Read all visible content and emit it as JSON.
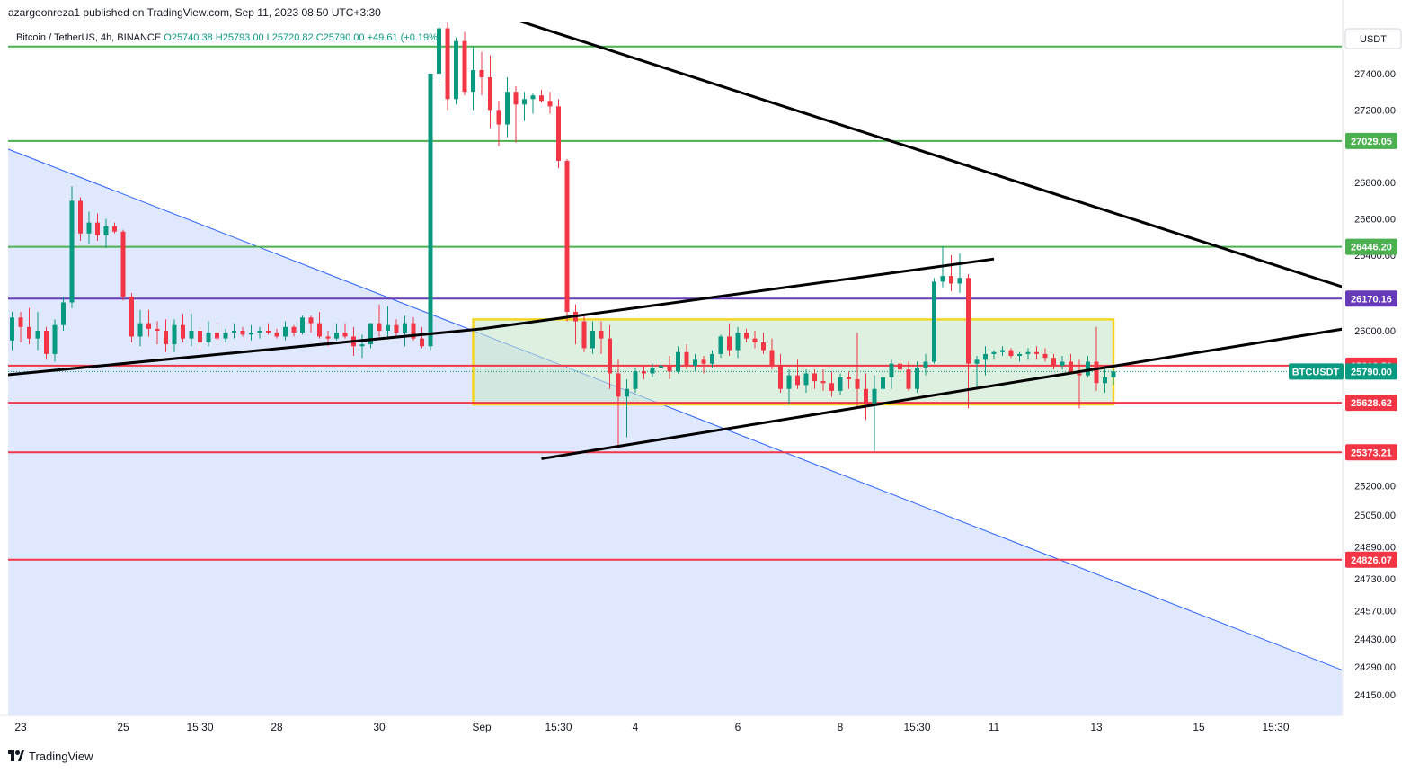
{
  "header": {
    "published_by": "azargoonreza1 published on TradingView.com, Sep 11, 2023 08:50 UTC+3:30"
  },
  "footer": {
    "brand": "TradingView"
  },
  "chart_data": {
    "type": "candlestick",
    "symbol_line": "Bitcoin / TetherUS, 4h, BINANCE",
    "ohlc": {
      "O": "25740.38",
      "H": "25793.00",
      "L": "25720.82",
      "C": "25790.00",
      "change": "+49.61 (+0.19%)"
    },
    "currency": "USDT",
    "y_axis": {
      "ticks": [
        [
          "27400.00",
          27400
        ],
        [
          "27200.00",
          27200
        ],
        [
          "26800.00",
          26800
        ],
        [
          "26600.00",
          26600
        ],
        [
          "26400.00",
          26400
        ],
        [
          "26000.00",
          26000
        ],
        [
          "25200.00",
          25200
        ],
        [
          "25050.00",
          25050
        ],
        [
          "24890.00",
          24890
        ],
        [
          "24730.00",
          24730
        ],
        [
          "24570.00",
          24570
        ],
        [
          "24430.00",
          24430
        ],
        [
          "24290.00",
          24290
        ],
        [
          "24150.00",
          24150
        ]
      ]
    },
    "x_axis": {
      "ticks": [
        [
          "23",
          "2023-08-23 00:00"
        ],
        [
          "25",
          "2023-08-25 00:00"
        ],
        [
          "15:30",
          "2023-08-26 12:00"
        ],
        [
          "28",
          "2023-08-28 00:00"
        ],
        [
          "30",
          "2023-08-30 00:00"
        ],
        [
          "Sep",
          "2023-09-01 00:00"
        ],
        [
          "15:30",
          "2023-09-02 12:00"
        ],
        [
          "4",
          "2023-09-04 00:00"
        ],
        [
          "6",
          "2023-09-06 00:00"
        ],
        [
          "8",
          "2023-09-08 00:00"
        ],
        [
          "15:30",
          "2023-09-09 12:00"
        ],
        [
          "11",
          "2023-09-11 00:00"
        ],
        [
          "13",
          "2023-09-13 00:00"
        ],
        [
          "15",
          "2023-09-15 00:00"
        ],
        [
          "15:30",
          "2023-09-16 12:00"
        ]
      ]
    },
    "horizontal_levels": [
      {
        "price": 27550,
        "color": "#4caf50"
      },
      {
        "price": 27029.05,
        "label": "27029.05",
        "color": "#4caf50"
      },
      {
        "price": 26446.2,
        "label": "26446.20",
        "color": "#4caf50"
      },
      {
        "price": 26170.16,
        "label": "26170.16",
        "color": "#673ab7"
      },
      {
        "price": 25819.58,
        "label": "25819.58",
        "color": "#f23645"
      },
      {
        "price": 25628.62,
        "label": "25628.62",
        "color": "#f23645"
      },
      {
        "price": 25373.21,
        "label": "25373.21",
        "color": "#f23645"
      },
      {
        "price": 24826.07,
        "label": "24826.07",
        "color": "#f23645"
      }
    ],
    "last_price": {
      "symbol": "BTCUSDT",
      "value": "25790.00",
      "color": "#089981"
    },
    "trendlines": [
      {
        "from": [
          "2023-08-22 06:00",
          25760
        ],
        "to": [
          "2023-09-01 00:00",
          26010
        ],
        "color": "#000000"
      },
      {
        "from": [
          "2023-09-01 00:00",
          26010
        ],
        "to": [
          "2023-09-11 00:00",
          26380
        ],
        "color": "#000000"
      },
      {
        "from": [
          "2023-09-02 04:00",
          25340
        ],
        "to": [
          "2023-09-17 20:00",
          26010
        ],
        "color": "#000000"
      },
      {
        "from": [
          "2023-08-29 08:00",
          28000
        ],
        "to": [
          "2023-09-17 20:00",
          26230
        ],
        "color": "#000000"
      }
    ],
    "blue_triangle": {
      "apex": [
        "2023-08-22 06:00",
        27040
      ],
      "end": [
        "2023-09-17 20:00",
        24270
      ],
      "color": "#2962ff"
    },
    "consolidation_box": {
      "from": [
        "2023-08-31 20:00",
        26060
      ],
      "to": [
        "2023-09-13 08:00",
        25620
      ],
      "border": "#f5d623",
      "fill": "#c8e6c9"
    },
    "candles_ohlc": [
      [
        25740,
        25800,
        25730,
        25760
      ],
      [
        25760,
        26000,
        25480,
        25990
      ],
      [
        25990,
        26120,
        25950,
        26030
      ],
      [
        26030,
        26090,
        25930,
        25950
      ],
      [
        25950,
        26100,
        25900,
        26070
      ],
      [
        26070,
        26100,
        25940,
        26020
      ],
      [
        26020,
        26120,
        25930,
        25960
      ],
      [
        25960,
        26100,
        25900,
        26000
      ],
      [
        26000,
        26020,
        25850,
        25880
      ],
      [
        25880,
        26060,
        25840,
        26030
      ],
      [
        26030,
        26180,
        26000,
        26150
      ],
      [
        26150,
        26780,
        26120,
        26700
      ],
      [
        26700,
        26720,
        26480,
        26520
      ],
      [
        26520,
        26640,
        26460,
        26580
      ],
      [
        26580,
        26630,
        26480,
        26510
      ],
      [
        26510,
        26600,
        26440,
        26560
      ],
      [
        26560,
        26580,
        26520,
        26530
      ],
      [
        26530,
        26540,
        26160,
        26180
      ],
      [
        26180,
        26200,
        25940,
        25970
      ],
      [
        25970,
        26110,
        25920,
        26040
      ],
      [
        26040,
        26110,
        25970,
        26010
      ],
      [
        26010,
        26050,
        25930,
        26000
      ],
      [
        26000,
        26060,
        25890,
        25930
      ],
      [
        25930,
        26060,
        25890,
        26030
      ],
      [
        26030,
        26090,
        25940,
        25960
      ],
      [
        25960,
        26090,
        25920,
        26000
      ],
      [
        26000,
        26020,
        25900,
        25940
      ],
      [
        25940,
        26050,
        25920,
        25990
      ],
      [
        25990,
        26040,
        25950,
        25960
      ],
      [
        25960,
        26010,
        25940,
        25990
      ],
      [
        25990,
        26040,
        25960,
        26000
      ],
      [
        26000,
        26020,
        25970,
        25980
      ],
      [
        25980,
        26030,
        25950,
        25990
      ],
      [
        25990,
        26020,
        25960,
        26000
      ],
      [
        26000,
        26040,
        25980,
        25990
      ],
      [
        25990,
        26010,
        25960,
        25970
      ],
      [
        25970,
        26050,
        25950,
        26020
      ],
      [
        26020,
        26030,
        25970,
        25990
      ],
      [
        25990,
        26080,
        25980,
        26070
      ],
      [
        26070,
        26080,
        25990,
        26040
      ],
      [
        26040,
        26100,
        25960,
        25970
      ],
      [
        25970,
        26000,
        25920,
        25960
      ],
      [
        25960,
        26040,
        25950,
        25990
      ],
      [
        25990,
        26040,
        25960,
        25970
      ],
      [
        25970,
        26020,
        25870,
        25920
      ],
      [
        25920,
        25980,
        25860,
        25930
      ],
      [
        25930,
        26040,
        25910,
        26040
      ],
      [
        26040,
        26140,
        25970,
        26000
      ],
      [
        26000,
        26130,
        25960,
        26030
      ],
      [
        26030,
        26060,
        25960,
        25990
      ],
      [
        25990,
        26080,
        25920,
        26040
      ],
      [
        26040,
        26070,
        25950,
        25960
      ],
      [
        25960,
        26020,
        25910,
        25920
      ],
      [
        25920,
        27400,
        25900,
        27400
      ],
      [
        27400,
        27800,
        27350,
        27650
      ],
      [
        27650,
        27700,
        27200,
        27260
      ],
      [
        27260,
        27600,
        27230,
        27580
      ],
      [
        27580,
        27630,
        27280,
        27300
      ],
      [
        27300,
        27550,
        27200,
        27420
      ],
      [
        27420,
        27520,
        27280,
        27380
      ],
      [
        27380,
        27500,
        27100,
        27200
      ],
      [
        27200,
        27250,
        27000,
        27120
      ],
      [
        27120,
        27380,
        27050,
        27300
      ],
      [
        27300,
        27330,
        27020,
        27230
      ],
      [
        27230,
        27300,
        27140,
        27260
      ],
      [
        27260,
        27290,
        27180,
        27280
      ],
      [
        27280,
        27310,
        27240,
        27250
      ],
      [
        27250,
        27300,
        27180,
        27220
      ],
      [
        27220,
        27260,
        26880,
        26920
      ],
      [
        26920,
        26930,
        26050,
        26100
      ],
      [
        26100,
        26140,
        25930,
        26050
      ],
      [
        26050,
        26080,
        25890,
        25910
      ],
      [
        25910,
        26050,
        25880,
        26000
      ],
      [
        26000,
        26050,
        25880,
        25960
      ],
      [
        25960,
        26030,
        25700,
        25780
      ],
      [
        25780,
        25850,
        25400,
        25660
      ],
      [
        25660,
        25750,
        25450,
        25700
      ],
      [
        25700,
        25810,
        25680,
        25790
      ],
      [
        25790,
        25820,
        25750,
        25780
      ],
      [
        25780,
        25830,
        25760,
        25810
      ],
      [
        25810,
        25840,
        25770,
        25820
      ],
      [
        25820,
        25870,
        25750,
        25790
      ],
      [
        25790,
        25920,
        25780,
        25890
      ],
      [
        25890,
        25930,
        25800,
        25820
      ],
      [
        25820,
        25880,
        25790,
        25850
      ],
      [
        25850,
        25870,
        25780,
        25830
      ],
      [
        25830,
        25900,
        25810,
        25880
      ],
      [
        25880,
        25980,
        25860,
        25970
      ],
      [
        25970,
        26040,
        25870,
        25900
      ],
      [
        25900,
        26020,
        25860,
        25990
      ],
      [
        25990,
        26010,
        25940,
        25960
      ],
      [
        25960,
        26000,
        25910,
        25940
      ],
      [
        25940,
        25990,
        25880,
        25900
      ],
      [
        25900,
        25960,
        25800,
        25820
      ],
      [
        25820,
        25880,
        25680,
        25700
      ],
      [
        25700,
        25800,
        25620,
        25770
      ],
      [
        25770,
        25850,
        25700,
        25720
      ],
      [
        25720,
        25800,
        25680,
        25780
      ],
      [
        25780,
        25800,
        25700,
        25740
      ],
      [
        25740,
        25800,
        25690,
        25730
      ],
      [
        25730,
        25790,
        25660,
        25690
      ],
      [
        25690,
        25780,
        25670,
        25760
      ],
      [
        25760,
        25790,
        25700,
        25750
      ],
      [
        25750,
        25990,
        25600,
        25700
      ],
      [
        25700,
        25780,
        25540,
        25620
      ],
      [
        25620,
        25770,
        25380,
        25700
      ],
      [
        25700,
        25780,
        25690,
        25760
      ],
      [
        25760,
        25850,
        25700,
        25830
      ],
      [
        25830,
        25850,
        25760,
        25800
      ],
      [
        25800,
        25840,
        25690,
        25700
      ],
      [
        25700,
        25840,
        25680,
        25810
      ],
      [
        25810,
        25880,
        25770,
        25840
      ],
      [
        25840,
        26280,
        25830,
        26260
      ],
      [
        26260,
        26450,
        26230,
        26290
      ],
      [
        26290,
        26400,
        26210,
        26250
      ],
      [
        26250,
        26410,
        26200,
        26280
      ],
      [
        26280,
        26300,
        25600,
        25830
      ],
      [
        25830,
        25870,
        25700,
        25850
      ],
      [
        25850,
        25920,
        25770,
        25880
      ],
      [
        25880,
        25900,
        25850,
        25890
      ],
      [
        25890,
        25920,
        25870,
        25900
      ],
      [
        25900,
        25910,
        25860,
        25870
      ],
      [
        25870,
        25890,
        25840,
        25880
      ],
      [
        25880,
        25910,
        25850,
        25890
      ],
      [
        25890,
        25920,
        25850,
        25880
      ],
      [
        25880,
        25910,
        25840,
        25860
      ],
      [
        25860,
        25880,
        25800,
        25820
      ],
      [
        25820,
        25870,
        25800,
        25840
      ],
      [
        25840,
        25880,
        25800,
        25780
      ],
      [
        25780,
        25850,
        25600,
        25770
      ],
      [
        25770,
        25870,
        25760,
        25840
      ],
      [
        25840,
        26020,
        25690,
        25730
      ],
      [
        25730,
        25810,
        25680,
        25760
      ],
      [
        25760,
        25800,
        25720,
        25790
      ]
    ]
  }
}
